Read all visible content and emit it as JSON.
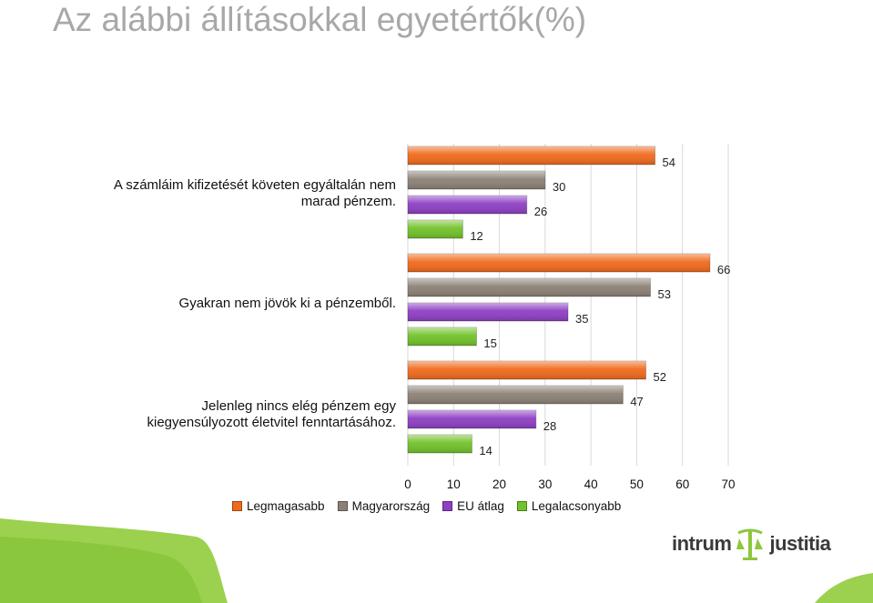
{
  "title": "Az alábbi állításokkal egyetértők(%)",
  "chart_data": {
    "type": "bar",
    "orientation": "horizontal",
    "categories": [
      "A számláim kifizetését követen egyáltalán nem marad pénzem.",
      "Gyakran nem jövök ki a pénzemből.",
      "Jelenleg nincs elég pénzem egy kiegyensúlyozott életvitel fenntartásához."
    ],
    "series": [
      {
        "name": "Legmagasabb",
        "color": "#f06a1c",
        "values": [
          54,
          66,
          52
        ]
      },
      {
        "name": "Magyarország",
        "color": "#8c8176",
        "values": [
          30,
          53,
          47
        ]
      },
      {
        "name": "EU átlag",
        "color": "#8e3fc4",
        "values": [
          26,
          35,
          28
        ]
      },
      {
        "name": "Legalacsonyabb",
        "color": "#72c22a",
        "values": [
          12,
          15,
          14
        ]
      }
    ],
    "xlim": [
      0,
      70
    ],
    "xticks": [
      "0",
      "10",
      "20",
      "30",
      "40",
      "50",
      "60",
      "70"
    ],
    "grid": true,
    "legend_position": "bottom"
  },
  "logo": {
    "left_word": "intrum",
    "right_word": "justitia",
    "brand_color": "#8dc63f"
  }
}
